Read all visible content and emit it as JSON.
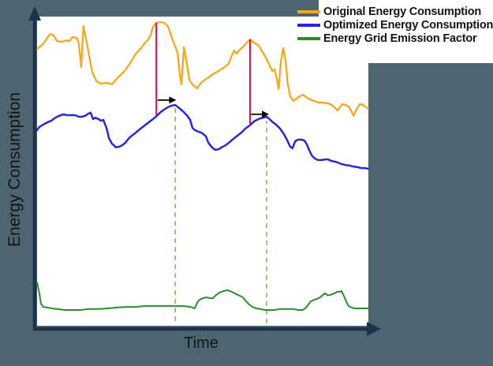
{
  "colors": {
    "background": "#4d6471",
    "axis": "#1d3349",
    "plot_background": "#ffffff",
    "text": "#141414",
    "annotation_arrow": "#000000"
  },
  "chart_data": {
    "type": "line",
    "title": "",
    "xlabel": "Time",
    "ylabel": "Energy Consumption",
    "x_range": [
      0,
      100
    ],
    "y_range": [
      0,
      100
    ],
    "grid": false,
    "axis_ticks": "none",
    "legend_position": "top-right",
    "series": [
      {
        "id": "original",
        "name": "Original Energy Consumption",
        "color": "#f9a61a",
        "stroke_width": 2.3,
        "points": [
          [
            0,
            89.5
          ],
          [
            0.7,
            90.1
          ],
          [
            1.9,
            91.3
          ],
          [
            3.1,
            93.1
          ],
          [
            4,
            94.4
          ],
          [
            5,
            93.9
          ],
          [
            6,
            92.1
          ],
          [
            7.4,
            91.8
          ],
          [
            8.8,
            92.3
          ],
          [
            9.8,
            92.1
          ],
          [
            10.7,
            93.4
          ],
          [
            11.9,
            93.1
          ],
          [
            12.6,
            91.3
          ],
          [
            13.3,
            83.7
          ],
          [
            14,
            96.9
          ],
          [
            14.8,
            92.6
          ],
          [
            15.7,
            87.5
          ],
          [
            16.7,
            81.9
          ],
          [
            17.9,
            79.1
          ],
          [
            19.3,
            78.3
          ],
          [
            21,
            78.6
          ],
          [
            22.6,
            78.1
          ],
          [
            24.5,
            80.4
          ],
          [
            26.4,
            82.4
          ],
          [
            28.1,
            84.9
          ],
          [
            29.8,
            88
          ],
          [
            31.2,
            89.5
          ],
          [
            32.4,
            91.3
          ],
          [
            33.6,
            92.6
          ],
          [
            34.3,
            94.1
          ],
          [
            35,
            96.7
          ],
          [
            36,
            98
          ],
          [
            37.1,
            98.2
          ],
          [
            38.3,
            98
          ],
          [
            39.5,
            96.9
          ],
          [
            40.7,
            93.1
          ],
          [
            42.4,
            88.3
          ],
          [
            43.1,
            81.1
          ],
          [
            43.6,
            78.1
          ],
          [
            44.3,
            90.1
          ],
          [
            45.2,
            85
          ],
          [
            46,
            79.3
          ],
          [
            47.1,
            77.8
          ],
          [
            48.3,
            76.8
          ],
          [
            49.5,
            78.6
          ],
          [
            50.7,
            79.6
          ],
          [
            51.9,
            80.4
          ],
          [
            53.1,
            81.4
          ],
          [
            54.3,
            82.1
          ],
          [
            55.5,
            82.9
          ],
          [
            56.7,
            83.7
          ],
          [
            57.9,
            84.9
          ],
          [
            58.8,
            87.5
          ],
          [
            59.5,
            89
          ],
          [
            60.2,
            88
          ],
          [
            61.2,
            89.3
          ],
          [
            62.1,
            90.1
          ],
          [
            63.1,
            91.3
          ],
          [
            63.8,
            92.1
          ],
          [
            64.3,
            92.6
          ],
          [
            65.2,
            91.8
          ],
          [
            66.2,
            91.1
          ],
          [
            66.9,
            90.6
          ],
          [
            67.6,
            89.3
          ],
          [
            68.6,
            87.5
          ],
          [
            69.3,
            86.2
          ],
          [
            70.2,
            84.2
          ],
          [
            71,
            82.4
          ],
          [
            71.7,
            82.9
          ],
          [
            72.4,
            79.8
          ],
          [
            72.9,
            76.5
          ],
          [
            73.6,
            85.5
          ],
          [
            74.3,
            89.8
          ],
          [
            75,
            85.7
          ],
          [
            75.7,
            78.1
          ],
          [
            76.4,
            74.2
          ],
          [
            77.4,
            72.7
          ],
          [
            78.3,
            73.5
          ],
          [
            79.3,
            74.2
          ],
          [
            80.2,
            74.7
          ],
          [
            81.2,
            74
          ],
          [
            82.4,
            73.2
          ],
          [
            83.6,
            72.7
          ],
          [
            85,
            72.2
          ],
          [
            86.4,
            72.2
          ],
          [
            87.9,
            71.9
          ],
          [
            89,
            71.4
          ],
          [
            90,
            70.4
          ],
          [
            90.7,
            69.6
          ],
          [
            91.4,
            70.7
          ],
          [
            92.1,
            71.7
          ],
          [
            93.1,
            71.4
          ],
          [
            94,
            70.9
          ],
          [
            94.8,
            69.6
          ],
          [
            95.5,
            67.9
          ],
          [
            96.4,
            69.9
          ],
          [
            97.4,
            71.7
          ],
          [
            98.3,
            71.4
          ],
          [
            99.3,
            70.7
          ],
          [
            100,
            70.2
          ]
        ]
      },
      {
        "id": "optimized",
        "name": "Optimized Energy Consumption",
        "color": "#2727de",
        "stroke_width": 2.5,
        "points": [
          [
            0,
            63.3
          ],
          [
            0.7,
            64.3
          ],
          [
            1.9,
            65.1
          ],
          [
            3.1,
            65.8
          ],
          [
            4.3,
            66.3
          ],
          [
            5.5,
            67.3
          ],
          [
            6.7,
            67.9
          ],
          [
            7.9,
            68.4
          ],
          [
            9,
            68.1
          ],
          [
            10.2,
            68.1
          ],
          [
            11.4,
            68.1
          ],
          [
            12.6,
            67.6
          ],
          [
            13.6,
            67.6
          ],
          [
            14.5,
            67.9
          ],
          [
            15.5,
            68.6
          ],
          [
            16.2,
            68.9
          ],
          [
            16.9,
            66.8
          ],
          [
            17.6,
            67.3
          ],
          [
            18.6,
            66.8
          ],
          [
            19.3,
            66.3
          ],
          [
            20,
            66.6
          ],
          [
            21,
            63.8
          ],
          [
            21.7,
            60.7
          ],
          [
            22.6,
            58.9
          ],
          [
            23.8,
            57.7
          ],
          [
            24.8,
            57.9
          ],
          [
            25.7,
            58.4
          ],
          [
            26.7,
            59.2
          ],
          [
            27.6,
            60.5
          ],
          [
            28.6,
            61.5
          ],
          [
            29.5,
            62.2
          ],
          [
            30.7,
            63.3
          ],
          [
            31.9,
            64.3
          ],
          [
            33.1,
            65.3
          ],
          [
            34.3,
            66.3
          ],
          [
            35.5,
            67.3
          ],
          [
            36.2,
            67.9
          ],
          [
            37.1,
            68.9
          ],
          [
            38.3,
            69.9
          ],
          [
            39.5,
            70.7
          ],
          [
            40.7,
            71.2
          ],
          [
            41.7,
            71.4
          ],
          [
            42.9,
            70.4
          ],
          [
            44,
            69.4
          ],
          [
            45.2,
            68.1
          ],
          [
            46.2,
            66.6
          ],
          [
            46.9,
            64
          ],
          [
            47.6,
            63.3
          ],
          [
            48.6,
            62.8
          ],
          [
            49.5,
            62.5
          ],
          [
            50.2,
            62
          ],
          [
            51,
            61.2
          ],
          [
            51.7,
            59.2
          ],
          [
            52.4,
            58.2
          ],
          [
            53.1,
            57.4
          ],
          [
            53.8,
            56.9
          ],
          [
            54.8,
            57.1
          ],
          [
            55.7,
            57.7
          ],
          [
            56.9,
            58.4
          ],
          [
            58.1,
            59.4
          ],
          [
            59.3,
            60.5
          ],
          [
            60.5,
            61.5
          ],
          [
            61.7,
            62.5
          ],
          [
            62.9,
            63.8
          ],
          [
            63.8,
            64.5
          ],
          [
            64.5,
            65.1
          ],
          [
            65.5,
            66.1
          ],
          [
            66.4,
            66.6
          ],
          [
            67.4,
            67.1
          ],
          [
            68.3,
            67.3
          ],
          [
            69.3,
            67.6
          ],
          [
            70.2,
            66.8
          ],
          [
            71.2,
            65.8
          ],
          [
            72.1,
            65.1
          ],
          [
            73.3,
            63.8
          ],
          [
            74.5,
            62
          ],
          [
            75.5,
            60
          ],
          [
            76.4,
            57.9
          ],
          [
            77.1,
            57.4
          ],
          [
            77.9,
            59.7
          ],
          [
            78.8,
            60.2
          ],
          [
            79.8,
            60.2
          ],
          [
            80.7,
            59.9
          ],
          [
            81.4,
            58.7
          ],
          [
            82.1,
            56.9
          ],
          [
            82.9,
            55.1
          ],
          [
            83.8,
            54.1
          ],
          [
            84.8,
            53.6
          ],
          [
            86,
            53.6
          ],
          [
            86.9,
            53.8
          ],
          [
            87.9,
            53.8
          ],
          [
            88.8,
            53.3
          ],
          [
            89.8,
            53.1
          ],
          [
            90.7,
            52.8
          ],
          [
            91.9,
            52.3
          ],
          [
            93.1,
            52
          ],
          [
            94.3,
            51.8
          ],
          [
            95.5,
            51.5
          ],
          [
            96.7,
            51.3
          ],
          [
            97.9,
            51
          ],
          [
            98.8,
            51
          ],
          [
            100,
            50.8
          ]
        ]
      },
      {
        "id": "emission",
        "name": "Energy Grid Emission Factor",
        "color": "#2e8b2e",
        "stroke_width": 2,
        "points": [
          [
            0,
            14
          ],
          [
            0.7,
            10.5
          ],
          [
            1.2,
            7.1
          ],
          [
            1.9,
            6.1
          ],
          [
            3.1,
            5.9
          ],
          [
            4.5,
            5.6
          ],
          [
            6.2,
            5.4
          ],
          [
            8.3,
            5.1
          ],
          [
            10.7,
            5.1
          ],
          [
            13.1,
            5.1
          ],
          [
            15.5,
            5.4
          ],
          [
            18.3,
            5.4
          ],
          [
            21.2,
            5.6
          ],
          [
            24,
            5.9
          ],
          [
            26.9,
            6.1
          ],
          [
            29.8,
            6.1
          ],
          [
            32.6,
            6.4
          ],
          [
            35.5,
            6.4
          ],
          [
            38.3,
            6.4
          ],
          [
            41.2,
            6.4
          ],
          [
            44,
            6.4
          ],
          [
            46.4,
            6.1
          ],
          [
            47.6,
            5.6
          ],
          [
            48.3,
            7.4
          ],
          [
            49,
            8.4
          ],
          [
            50,
            8.9
          ],
          [
            51.2,
            9.2
          ],
          [
            52.1,
            8.9
          ],
          [
            53.1,
            8.9
          ],
          [
            54,
            9.9
          ],
          [
            55,
            10.7
          ],
          [
            56.2,
            11.2
          ],
          [
            57.4,
            11.5
          ],
          [
            58.3,
            11.2
          ],
          [
            59.3,
            10.7
          ],
          [
            60.2,
            10.2
          ],
          [
            61.2,
            9.7
          ],
          [
            62.1,
            9.2
          ],
          [
            63.1,
            7.9
          ],
          [
            64,
            6.9
          ],
          [
            65,
            6.1
          ],
          [
            66.2,
            5.6
          ],
          [
            67.4,
            5.4
          ],
          [
            68.8,
            5.1
          ],
          [
            70.2,
            5.1
          ],
          [
            71.7,
            5.1
          ],
          [
            73.1,
            5.4
          ],
          [
            74.5,
            5.4
          ],
          [
            76,
            5.4
          ],
          [
            77.4,
            5.4
          ],
          [
            78.8,
            5.1
          ],
          [
            80.2,
            5.1
          ],
          [
            81.2,
            5.9
          ],
          [
            81.9,
            6.9
          ],
          [
            82.6,
            7.9
          ],
          [
            83.6,
            8.4
          ],
          [
            84.5,
            8.7
          ],
          [
            85.5,
            9.2
          ],
          [
            86.2,
            9.9
          ],
          [
            86.9,
            10.5
          ],
          [
            87.6,
            9.9
          ],
          [
            88.3,
            9.9
          ],
          [
            89,
            10.2
          ],
          [
            89.8,
            10.5
          ],
          [
            90.5,
            11
          ],
          [
            91.2,
            11
          ],
          [
            91.9,
            11.2
          ],
          [
            92.6,
            9.7
          ],
          [
            93.3,
            7.9
          ],
          [
            94,
            6.4
          ],
          [
            95,
            5.9
          ],
          [
            96,
            5.6
          ],
          [
            97.4,
            5.6
          ],
          [
            98.8,
            5.6
          ],
          [
            100,
            5.6
          ]
        ]
      }
    ],
    "annotations": {
      "peak_marker_lines": [
        {
          "x": 36.0,
          "y_from": 68.1,
          "y_to": 98.0,
          "color": "#d6145f"
        },
        {
          "x": 64.3,
          "y_from": 65.3,
          "y_to": 92.6,
          "color": "#d6145f"
        }
      ],
      "shift_arrows": [
        {
          "x_from": 36.4,
          "x_to": 42.0,
          "y": 73.0,
          "color": "#000000"
        },
        {
          "x_from": 64.6,
          "x_to": 70.0,
          "y": 68.4,
          "color": "#000000"
        }
      ],
      "dashed_vlines": [
        {
          "x": 41.7,
          "y_from": 1.5,
          "y_to": 70.4,
          "color": "#77c455"
        },
        {
          "x": 69.3,
          "y_from": 0.8,
          "y_to": 66.3,
          "color": "#77c455"
        }
      ]
    }
  },
  "legend": {
    "items": [
      {
        "label": "Original Energy Consumption"
      },
      {
        "label": "Optimized Energy Consumption"
      },
      {
        "label": "Energy Grid Emission Factor"
      }
    ]
  }
}
